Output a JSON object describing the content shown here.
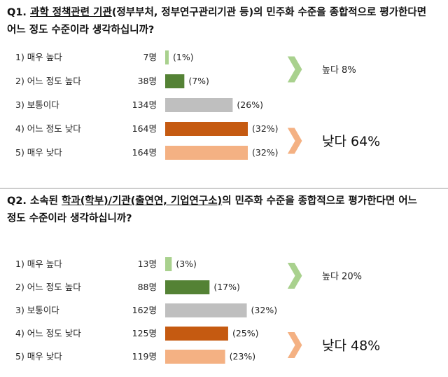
{
  "chart_data": [
    {
      "type": "bar",
      "orientation": "horizontal",
      "question": {
        "number": "Q1.",
        "parts": [
          {
            "text": " ",
            "u": false
          },
          {
            "text": "과학 정책관련 기관",
            "u": true
          },
          {
            "text": "(정부부처, 정부연구관리기관 등)의 민주화 수준을 종합적으로 평가한다면 어느 정도 수준이라 생각하십니까?",
            "u": false
          }
        ]
      },
      "categories": [
        "1) 매우 높다",
        "2) 어느 정도 높다",
        "3) 보통이다",
        "4) 어느 정도 낮다",
        "5) 매우 낮다"
      ],
      "counts": [
        7,
        38,
        134,
        164,
        164
      ],
      "count_labels": [
        "7명",
        "38명",
        "134명",
        "164명",
        "164명"
      ],
      "percents": [
        1,
        7,
        26,
        32,
        32
      ],
      "percent_labels": [
        "(1%)",
        "(7%)",
        "(26%)",
        "(32%)",
        "(32%)"
      ],
      "colors": [
        "#a9d18e",
        "#548235",
        "#bfbfbf",
        "#c55a11",
        "#f4b183"
      ],
      "max_count": 164,
      "summaries": [
        {
          "text": "높다 8%",
          "size": "small",
          "arrow_color": "#a9d18e",
          "rows": [
            0,
            1
          ]
        },
        {
          "text": "낮다 64%",
          "size": "big",
          "arrow_color": "#f4b183",
          "rows": [
            3,
            4
          ]
        }
      ]
    },
    {
      "type": "bar",
      "orientation": "horizontal",
      "question": {
        "number": "Q2.",
        "parts": [
          {
            "text": " 소속된 ",
            "u": false
          },
          {
            "text": "학과(학부)/기관(출연연, 기업연구소)",
            "u": true
          },
          {
            "text": "의 민주화 수준을 종합적으로 평가한다면 어느 정도 수준이라 생각하십니까?",
            "u": false
          }
        ]
      },
      "categories": [
        "1) 매우 높다",
        "2) 어느 정도 높다",
        "3) 보통이다",
        "4) 어느 정도 낮다",
        "5) 매우 낮다"
      ],
      "counts": [
        13,
        88,
        162,
        125,
        119
      ],
      "count_labels": [
        "13명",
        "88명",
        "162명",
        "125명",
        "119명"
      ],
      "percents": [
        3,
        17,
        32,
        25,
        23
      ],
      "percent_labels": [
        "(3%)",
        "(17%)",
        "(32%)",
        "(25%)",
        "(23%)"
      ],
      "colors": [
        "#a9d18e",
        "#548235",
        "#bfbfbf",
        "#c55a11",
        "#f4b183"
      ],
      "max_count": 164,
      "summaries": [
        {
          "text": "높다 20%",
          "size": "small",
          "arrow_color": "#a9d18e",
          "rows": [
            0,
            1
          ]
        },
        {
          "text": "낮다 48%",
          "size": "big",
          "arrow_color": "#f4b183",
          "rows": [
            3,
            4
          ]
        }
      ]
    }
  ]
}
